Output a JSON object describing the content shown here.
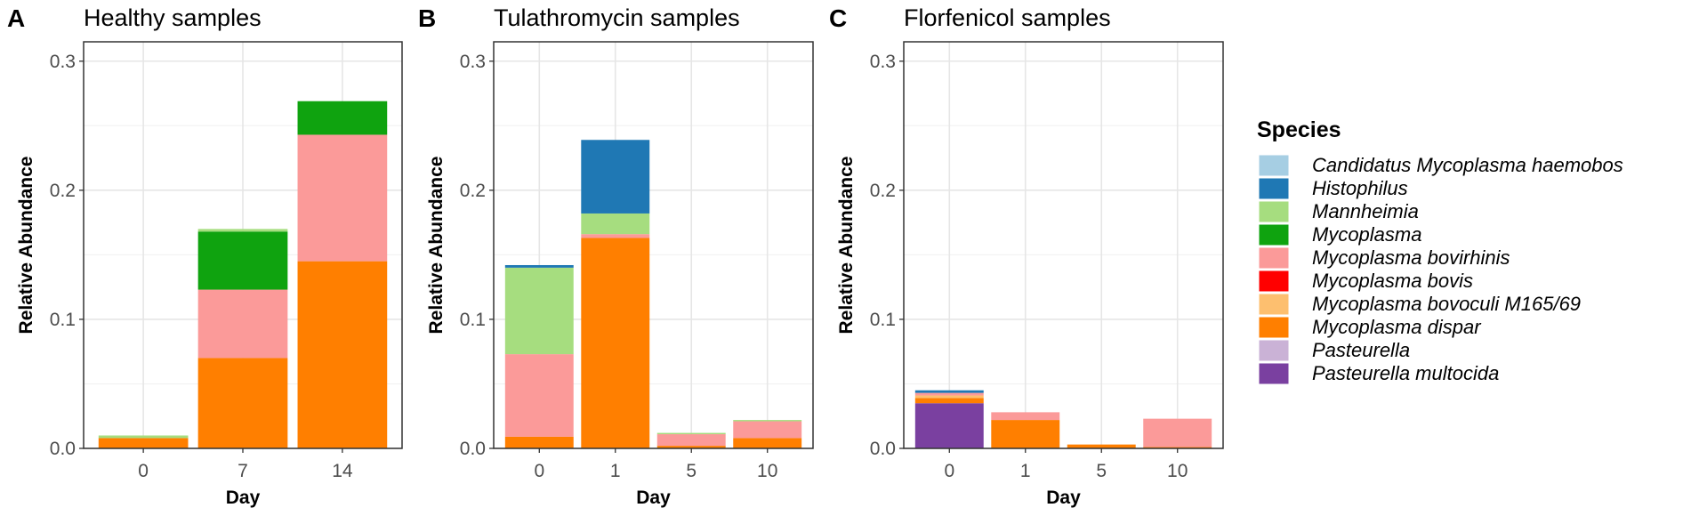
{
  "chart_data": [
    {
      "type": "bar",
      "stacked": true,
      "panel": "A",
      "title": "Healthy samples",
      "xlabel": "Day",
      "ylabel": "Relative Abundance",
      "ylim": [
        0,
        0.315
      ],
      "yticks": [
        "0.0",
        "0.1",
        "0.2",
        "0.3"
      ],
      "categories": [
        "0",
        "7",
        "14"
      ],
      "series": [
        {
          "name": "Mycoplasma dispar",
          "values": [
            0.008,
            0.07,
            0.145
          ]
        },
        {
          "name": "Mycoplasma bovirhinis",
          "values": [
            0.0,
            0.053,
            0.098
          ]
        },
        {
          "name": "Mycoplasma",
          "values": [
            0.0,
            0.045,
            0.026
          ]
        },
        {
          "name": "Mannheimia",
          "values": [
            0.002,
            0.002,
            0.0
          ]
        }
      ]
    },
    {
      "type": "bar",
      "stacked": true,
      "panel": "B",
      "title": "Tulathromycin samples",
      "xlabel": "Day",
      "ylabel": "Relative Abundance",
      "ylim": [
        0,
        0.315
      ],
      "yticks": [
        "0.0",
        "0.1",
        "0.2",
        "0.3"
      ],
      "categories": [
        "0",
        "1",
        "5",
        "10"
      ],
      "series": [
        {
          "name": "Mycoplasma dispar",
          "values": [
            0.009,
            0.163,
            0.002,
            0.008
          ]
        },
        {
          "name": "Mycoplasma bovirhinis",
          "values": [
            0.064,
            0.003,
            0.009,
            0.013
          ]
        },
        {
          "name": "Mannheimia",
          "values": [
            0.067,
            0.016,
            0.001,
            0.001
          ]
        },
        {
          "name": "Histophilus",
          "values": [
            0.002,
            0.057,
            0.0,
            0.0
          ]
        }
      ]
    },
    {
      "type": "bar",
      "stacked": true,
      "panel": "C",
      "title": "Florfenicol samples",
      "xlabel": "Day",
      "ylabel": "Relative Abundance",
      "ylim": [
        0,
        0.315
      ],
      "yticks": [
        "0.0",
        "0.1",
        "0.2",
        "0.3"
      ],
      "categories": [
        "0",
        "1",
        "5",
        "10"
      ],
      "series": [
        {
          "name": "Pasteurella multocida",
          "values": [
            0.035,
            0.0,
            0.0,
            0.0
          ]
        },
        {
          "name": "Mycoplasma dispar",
          "values": [
            0.004,
            0.022,
            0.003,
            0.001
          ]
        },
        {
          "name": "Mycoplasma bovoculi M165/69",
          "values": [
            0.002,
            0.0,
            0.0,
            0.0
          ]
        },
        {
          "name": "Mycoplasma bovirhinis",
          "values": [
            0.002,
            0.006,
            0.0,
            0.022
          ]
        },
        {
          "name": "Histophilus",
          "values": [
            0.002,
            0.0,
            0.0,
            0.0
          ]
        }
      ]
    }
  ],
  "legend": {
    "title": "Species",
    "items": [
      {
        "name": "Candidatus Mycoplasma haemobos",
        "color": "#a6cee3"
      },
      {
        "name": "Histophilus",
        "color": "#1f78b4"
      },
      {
        "name": "Mannheimia",
        "color": "#a6dd7f"
      },
      {
        "name": "Mycoplasma",
        "color": "#0fa30f"
      },
      {
        "name": "Mycoplasma bovirhinis",
        "color": "#fb9a99"
      },
      {
        "name": "Mycoplasma bovis",
        "color": "#ff0000"
      },
      {
        "name": "Mycoplasma bovoculi M165/69",
        "color": "#fdbf6f"
      },
      {
        "name": "Mycoplasma dispar",
        "color": "#ff7f00"
      },
      {
        "name": "Pasteurella",
        "color": "#cab2d6"
      },
      {
        "name": "Pasteurella multocida",
        "color": "#7a40a0"
      }
    ]
  }
}
